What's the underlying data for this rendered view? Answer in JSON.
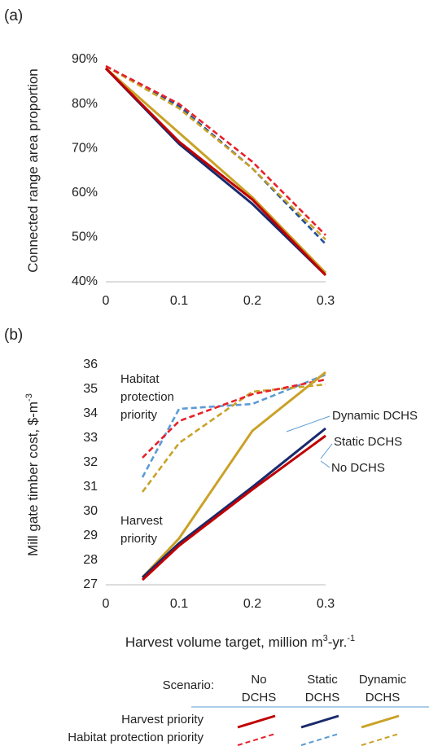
{
  "chart_data": [
    {
      "type": "line",
      "panel_label": "(a)",
      "y_label": [
        "Connected range area proportion"
      ],
      "x": [
        0,
        0.1,
        0.2,
        0.3
      ],
      "xlim": [
        0,
        0.3
      ],
      "xticks": [
        0,
        0.1,
        0.2,
        0.3
      ],
      "ylim": [
        40,
        90
      ],
      "yticks": [
        {
          "value": 40,
          "label": "40%"
        },
        {
          "value": 50,
          "label": "50%"
        },
        {
          "value": 60,
          "label": "60%"
        },
        {
          "value": 70,
          "label": "70%"
        },
        {
          "value": 80,
          "label": "80%"
        },
        {
          "value": 90,
          "label": "90%"
        }
      ],
      "series": [
        {
          "color": "#1f4e9c",
          "dashed": true,
          "values": [
            88.5,
            79.5,
            65.5,
            48.5
          ]
        },
        {
          "color": "#c9a227",
          "dashed": true,
          "values": [
            88.5,
            79,
            65.5,
            49.5
          ]
        },
        {
          "color": "#e8202a",
          "dashed": true,
          "values": [
            88.5,
            80,
            67,
            50.5
          ]
        },
        {
          "color": "#c9a227",
          "dashed": false,
          "values": [
            88,
            73.5,
            59,
            42
          ]
        },
        {
          "color": "#1a2a6c",
          "dashed": false,
          "values": [
            88,
            71,
            57.5,
            41.5
          ]
        },
        {
          "color": "#c00000",
          "dashed": false,
          "values": [
            88,
            71.5,
            58.5,
            41.5
          ]
        }
      ]
    },
    {
      "type": "line",
      "panel_label": "(b)",
      "y_label": [
        "Mill gate timber cost, $-m",
        "-3"
      ],
      "x_label": [
        "Harvest volume target, million m",
        "3",
        "-yr.",
        "-1"
      ],
      "x": [
        0.05,
        0.1,
        0.2,
        0.3
      ],
      "xlim": [
        0,
        0.3
      ],
      "xticks": [
        0,
        0.1,
        0.2,
        0.3
      ],
      "ylim": [
        27,
        36
      ],
      "yticks": [
        27,
        28,
        29,
        30,
        31,
        32,
        33,
        34,
        35,
        36
      ],
      "annotations": [
        [
          "Habitat",
          "protection",
          "priority"
        ],
        [
          "Harvest",
          "priority"
        ],
        [
          "Dynamic DCHS"
        ],
        [
          "Static DCHS"
        ],
        [
          "No DCHS"
        ]
      ],
      "series": [
        {
          "color": "#5b9bd5",
          "dashed": true,
          "values": [
            31.4,
            34.2,
            34.4,
            35.6
          ]
        },
        {
          "color": "#c9a227",
          "dashed": true,
          "values": [
            30.8,
            32.8,
            34.9,
            35.2
          ]
        },
        {
          "color": "#e8202a",
          "dashed": true,
          "values": [
            32.2,
            33.7,
            34.8,
            35.4
          ]
        },
        {
          "color": "#c9a227",
          "dashed": false,
          "values": [
            27.3,
            28.9,
            33.3,
            35.7
          ]
        },
        {
          "color": "#1a2a6c",
          "dashed": false,
          "values": [
            27.3,
            28.7,
            31.0,
            33.4
          ]
        },
        {
          "color": "#c00000",
          "dashed": false,
          "values": [
            27.2,
            28.6,
            30.9,
            33.1
          ]
        }
      ]
    }
  ],
  "legend": {
    "title": "Scenario:",
    "columns": [
      [
        "No",
        "DCHS"
      ],
      [
        "Static",
        "DCHS"
      ],
      [
        "Dynamic",
        "DCHS"
      ]
    ],
    "rows": [
      "Harvest priority",
      "Habitat protection priority"
    ],
    "swatches": [
      [
        {
          "color": "#c00000",
          "dashed": false
        },
        {
          "color": "#1a2a6c",
          "dashed": false
        },
        {
          "color": "#c9a227",
          "dashed": false
        }
      ],
      [
        {
          "color": "#e8202a",
          "dashed": true
        },
        {
          "color": "#5b9bd5",
          "dashed": true
        },
        {
          "color": "#c9a227",
          "dashed": true
        }
      ]
    ]
  }
}
